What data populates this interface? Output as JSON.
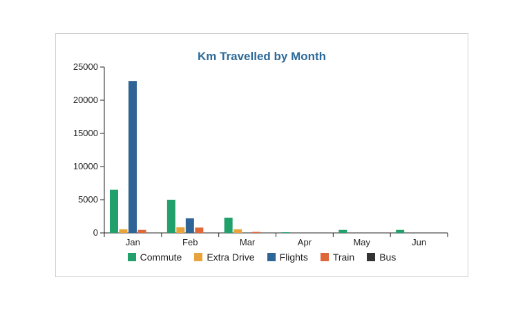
{
  "chart_data": {
    "type": "bar",
    "title": "Km Travelled by Month",
    "xlabel": "",
    "ylabel": "",
    "categories": [
      "Jan",
      "Feb",
      "Mar",
      "Apr",
      "May",
      "Jun"
    ],
    "ylim": [
      0,
      25000
    ],
    "yticks": [
      "0",
      "5000",
      "10000",
      "15000",
      "20000",
      "25000"
    ],
    "grid": false,
    "legend_position": "bottom",
    "series": [
      {
        "name": "Commute",
        "color": "#22a06b",
        "values": [
          6500,
          5000,
          2300,
          100,
          450,
          450
        ]
      },
      {
        "name": "Extra Drive",
        "color": "#e8a33a",
        "values": [
          550,
          850,
          550,
          0,
          0,
          0
        ]
      },
      {
        "name": "Flights",
        "color": "#2e6496",
        "values": [
          22900,
          2200,
          0,
          0,
          0,
          0
        ]
      },
      {
        "name": "Train",
        "color": "#e0673a",
        "values": [
          450,
          800,
          150,
          0,
          0,
          0
        ]
      },
      {
        "name": "Bus",
        "color": "#333333",
        "values": [
          0,
          0,
          0,
          0,
          0,
          0
        ]
      }
    ]
  }
}
